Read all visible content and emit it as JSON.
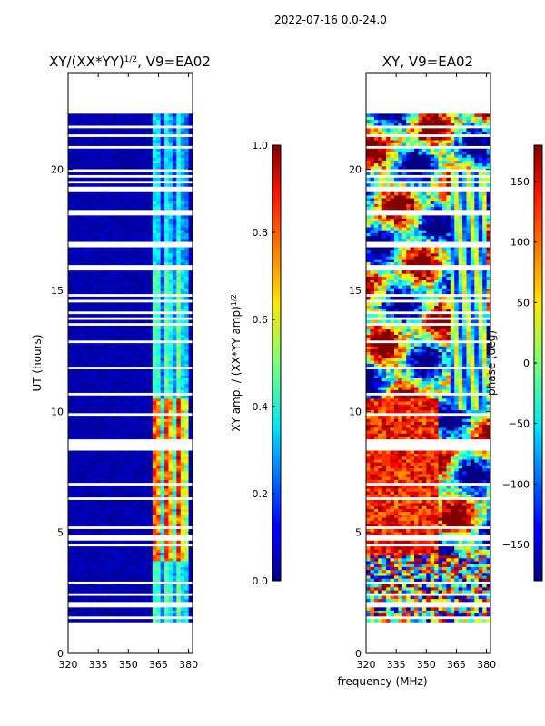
{
  "figure": {
    "suptitle": "2022-07-16 0.0-24.0",
    "shared_xlabel": "frequency (MHz)"
  },
  "chart_data": [
    {
      "type": "heatmap",
      "title_main": "XY/(XX*YY)",
      "title_sup": "1/2",
      "title_tail": ", V9=EA02",
      "ylabel": "UT (hours)",
      "x": {
        "range": [
          320,
          382
        ],
        "ticks": [
          320,
          335,
          350,
          365,
          380
        ],
        "tick_labels": [
          "320",
          "335",
          "350",
          "365",
          "380"
        ]
      },
      "y": {
        "range": [
          0,
          24
        ],
        "ticks": [
          0,
          5,
          10,
          15,
          20
        ],
        "tick_labels": [
          "0",
          "5",
          "10",
          "15",
          "20"
        ]
      },
      "data_extent_hours": [
        1.3,
        22.3
      ],
      "colorbar": {
        "label_main": "XY amp. / (XX*YY amp)",
        "label_sup": "1/2",
        "range": [
          0.0,
          1.0
        ],
        "ticks": [
          0.0,
          0.2,
          0.4,
          0.6,
          0.8,
          1.0
        ],
        "tick_labels": [
          "0.0",
          "0.2",
          "0.4",
          "0.6",
          "0.8",
          "1.0"
        ]
      }
    },
    {
      "type": "heatmap",
      "title_main": "XY, V9=EA02",
      "title_sup": "",
      "title_tail": "",
      "ylabel": "",
      "x": {
        "range": [
          320,
          382
        ],
        "ticks": [
          320,
          335,
          350,
          365,
          380
        ],
        "tick_labels": [
          "320",
          "335",
          "350",
          "365",
          "380"
        ]
      },
      "y": {
        "range": [
          0,
          24
        ],
        "ticks": [
          0,
          5,
          10,
          15,
          20
        ],
        "tick_labels": [
          "0",
          "5",
          "10",
          "15",
          "20"
        ]
      },
      "data_extent_hours": [
        1.3,
        22.3
      ],
      "colorbar": {
        "label_main": "phase (deg)",
        "label_sup": "",
        "range": [
          -180,
          180
        ],
        "ticks": [
          -150,
          -100,
          -50,
          0,
          50,
          100,
          150
        ],
        "tick_labels": [
          "−150",
          "−100",
          "−50",
          "0",
          "50",
          "100",
          "150"
        ]
      }
    }
  ],
  "colormap": "jet"
}
